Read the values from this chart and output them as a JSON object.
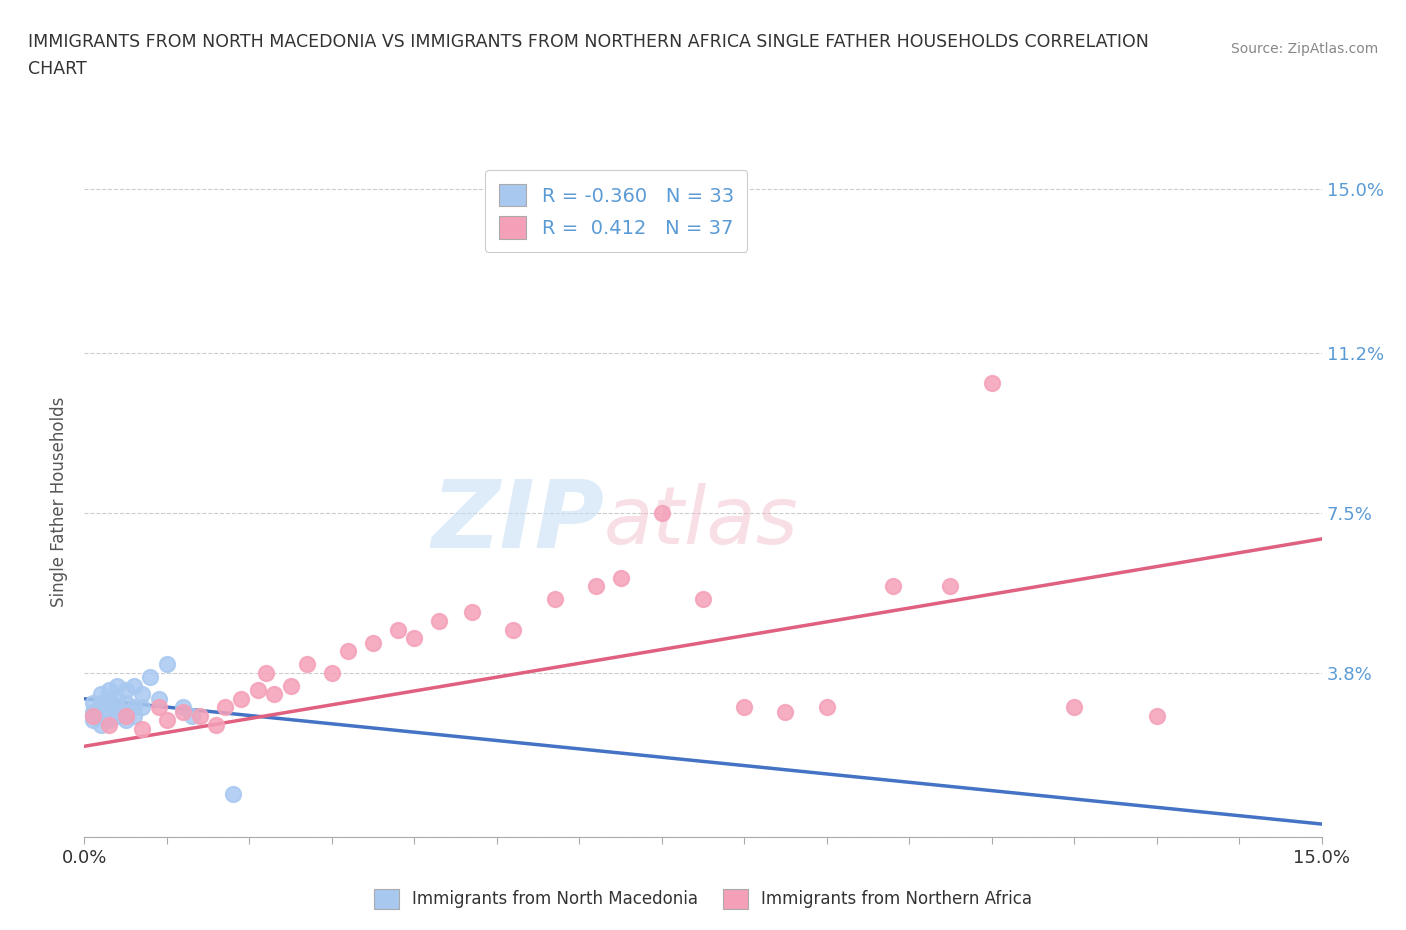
{
  "title_line1": "IMMIGRANTS FROM NORTH MACEDONIA VS IMMIGRANTS FROM NORTHERN AFRICA SINGLE FATHER HOUSEHOLDS CORRELATION",
  "title_line2": "CHART",
  "source": "Source: ZipAtlas.com",
  "ylabel": "Single Father Households",
  "xlim": [
    0.0,
    0.15
  ],
  "ylim": [
    0.0,
    0.155
  ],
  "yticks": [
    0.0,
    0.038,
    0.075,
    0.112,
    0.15
  ],
  "ytick_labels": [
    "",
    "3.8%",
    "7.5%",
    "11.2%",
    "15.0%"
  ],
  "legend_label1": "Immigrants from North Macedonia",
  "legend_label2": "Immigrants from Northern Africa",
  "R1": -0.36,
  "N1": 33,
  "R2": 0.412,
  "N2": 37,
  "color1": "#a8c8f0",
  "color2": "#f4a0b8",
  "line_color1": "#4472c4",
  "line_color2": "#e06080",
  "watermark_zip": "ZIP",
  "watermark_atlas": "atlas",
  "background_color": "#ffffff",
  "scatter1_x": [
    0.001,
    0.001,
    0.001,
    0.001,
    0.002,
    0.002,
    0.002,
    0.002,
    0.002,
    0.003,
    0.003,
    0.003,
    0.003,
    0.003,
    0.004,
    0.004,
    0.004,
    0.004,
    0.005,
    0.005,
    0.005,
    0.005,
    0.006,
    0.006,
    0.006,
    0.007,
    0.007,
    0.008,
    0.009,
    0.01,
    0.012,
    0.013,
    0.018
  ],
  "scatter1_y": [
    0.027,
    0.028,
    0.029,
    0.031,
    0.026,
    0.028,
    0.03,
    0.031,
    0.033,
    0.027,
    0.029,
    0.03,
    0.032,
    0.034,
    0.028,
    0.03,
    0.032,
    0.035,
    0.027,
    0.029,
    0.031,
    0.034,
    0.028,
    0.03,
    0.035,
    0.03,
    0.033,
    0.037,
    0.032,
    0.04,
    0.03,
    0.028,
    0.01
  ],
  "scatter2_x": [
    0.001,
    0.003,
    0.005,
    0.007,
    0.009,
    0.01,
    0.012,
    0.014,
    0.016,
    0.017,
    0.019,
    0.021,
    0.022,
    0.023,
    0.025,
    0.027,
    0.03,
    0.032,
    0.035,
    0.038,
    0.04,
    0.043,
    0.047,
    0.052,
    0.057,
    0.062,
    0.065,
    0.07,
    0.075,
    0.08,
    0.085,
    0.09,
    0.098,
    0.105,
    0.11,
    0.12,
    0.13
  ],
  "scatter2_y": [
    0.028,
    0.026,
    0.028,
    0.025,
    0.03,
    0.027,
    0.029,
    0.028,
    0.026,
    0.03,
    0.032,
    0.034,
    0.038,
    0.033,
    0.035,
    0.04,
    0.038,
    0.043,
    0.045,
    0.048,
    0.046,
    0.05,
    0.052,
    0.048,
    0.055,
    0.058,
    0.06,
    0.075,
    0.055,
    0.03,
    0.029,
    0.03,
    0.058,
    0.058,
    0.105,
    0.03,
    0.028
  ],
  "line1_x0": 0.0,
  "line1_y0": 0.032,
  "line1_x1": 0.15,
  "line1_y1": 0.003,
  "line2_x0": 0.0,
  "line2_y0": 0.021,
  "line2_x1": 0.15,
  "line2_y1": 0.069
}
